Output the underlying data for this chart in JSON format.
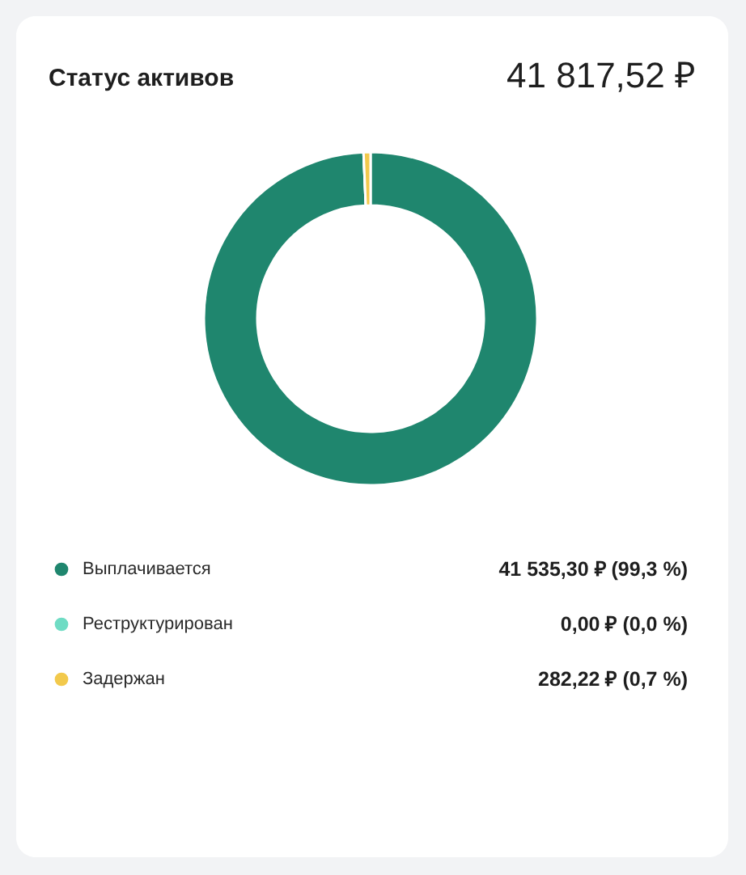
{
  "chart_data": {
    "type": "donut",
    "title": "Статус активов",
    "subtitle": "41 817,52 ₽",
    "categories": [
      "Выплачивается",
      "Реструктурирован",
      "Задержан"
    ],
    "values": [
      41535.3,
      0.0,
      282.22
    ],
    "colors": [
      "#1f866e",
      "#6fdcc4",
      "#f2c94c"
    ],
    "value_labels": [
      "41 535,30 ₽ (99,3 %)",
      "0,00 ₽ (0,0 %)",
      "282,22 ₽ (0,7 %)"
    ],
    "legend": "bottom"
  }
}
